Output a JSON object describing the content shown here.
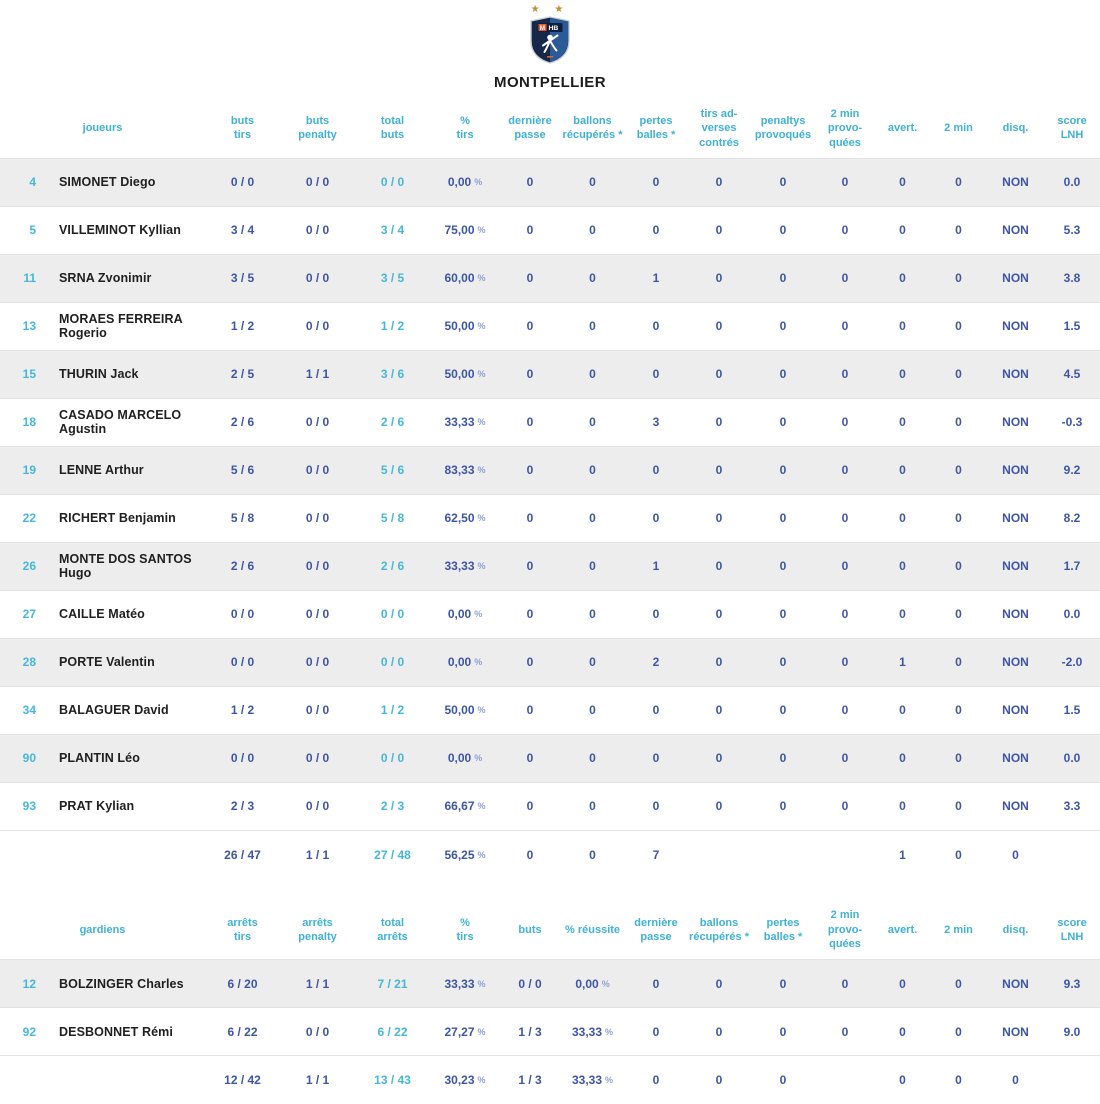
{
  "team": {
    "name": "MONTPELLIER",
    "logo": {
      "stars": "★ ★",
      "text_m": "M",
      "text_hb": "HB"
    }
  },
  "colors": {
    "header_cyan": "#3fb1d6",
    "value_blue": "#3d55a8",
    "accent_cyan": "#45b7d8",
    "row_alt_bg": "#ededed",
    "name_text": "#202020",
    "star_gold": "#bf8f30",
    "shield_dark": "#152849",
    "shield_light": "#2a5a97",
    "shield_orange": "#e35b2e"
  },
  "tables": [
    {
      "name": "players",
      "row_name": "player-row",
      "label_header": "joueurs",
      "columns": [
        "buts\ntirs",
        "buts\npenalty",
        "total\nbuts",
        "%\ntirs",
        "dernière\npasse",
        "ballons\nrécupérés *",
        "pertes\nballes *",
        "tirs ad-\nverses\ncontrés",
        "penaltys\nprovoqués",
        "2 min\nprovo-\nquées",
        "avert.",
        "2 min",
        "disq.",
        "score\nLNH"
      ],
      "rows": [
        {
          "num": "4",
          "name": "SIMONET Diego",
          "values": [
            "0 / 0",
            "0 / 0",
            "0 / 0",
            "0,00 %",
            "0",
            "0",
            "0",
            "0",
            "0",
            "0",
            "0",
            "0",
            "NON",
            "0.0"
          ]
        },
        {
          "num": "5",
          "name": "VILLEMINOT Kyllian",
          "values": [
            "3 / 4",
            "0 / 0",
            "3 / 4",
            "75,00 %",
            "0",
            "0",
            "0",
            "0",
            "0",
            "0",
            "0",
            "0",
            "NON",
            "5.3"
          ]
        },
        {
          "num": "11",
          "name": "SRNA Zvonimir",
          "values": [
            "3 / 5",
            "0 / 0",
            "3 / 5",
            "60,00 %",
            "0",
            "0",
            "1",
            "0",
            "0",
            "0",
            "0",
            "0",
            "NON",
            "3.8"
          ]
        },
        {
          "num": "13",
          "name": "MORAES FERREIRA Rogerio",
          "values": [
            "1 / 2",
            "0 / 0",
            "1 / 2",
            "50,00 %",
            "0",
            "0",
            "0",
            "0",
            "0",
            "0",
            "0",
            "0",
            "NON",
            "1.5"
          ]
        },
        {
          "num": "15",
          "name": "THURIN Jack",
          "values": [
            "2 / 5",
            "1 / 1",
            "3 / 6",
            "50,00 %",
            "0",
            "0",
            "0",
            "0",
            "0",
            "0",
            "0",
            "0",
            "NON",
            "4.5"
          ]
        },
        {
          "num": "18",
          "name": "CASADO MARCELO Agustin",
          "values": [
            "2 / 6",
            "0 / 0",
            "2 / 6",
            "33,33 %",
            "0",
            "0",
            "3",
            "0",
            "0",
            "0",
            "0",
            "0",
            "NON",
            "-0.3"
          ]
        },
        {
          "num": "19",
          "name": "LENNE Arthur",
          "values": [
            "5 / 6",
            "0 / 0",
            "5 / 6",
            "83,33 %",
            "0",
            "0",
            "0",
            "0",
            "0",
            "0",
            "0",
            "0",
            "NON",
            "9.2"
          ]
        },
        {
          "num": "22",
          "name": "RICHERT Benjamin",
          "values": [
            "5 / 8",
            "0 / 0",
            "5 / 8",
            "62,50 %",
            "0",
            "0",
            "0",
            "0",
            "0",
            "0",
            "0",
            "0",
            "NON",
            "8.2"
          ]
        },
        {
          "num": "26",
          "name": "MONTE DOS SANTOS Hugo",
          "values": [
            "2 / 6",
            "0 / 0",
            "2 / 6",
            "33,33 %",
            "0",
            "0",
            "1",
            "0",
            "0",
            "0",
            "0",
            "0",
            "NON",
            "1.7"
          ]
        },
        {
          "num": "27",
          "name": "CAILLE Matéo",
          "values": [
            "0 / 0",
            "0 / 0",
            "0 / 0",
            "0,00 %",
            "0",
            "0",
            "0",
            "0",
            "0",
            "0",
            "0",
            "0",
            "NON",
            "0.0"
          ]
        },
        {
          "num": "28",
          "name": "PORTE Valentin",
          "values": [
            "0 / 0",
            "0 / 0",
            "0 / 0",
            "0,00 %",
            "0",
            "0",
            "2",
            "0",
            "0",
            "0",
            "1",
            "0",
            "NON",
            "-2.0"
          ]
        },
        {
          "num": "34",
          "name": "BALAGUER David",
          "values": [
            "1 / 2",
            "0 / 0",
            "1 / 2",
            "50,00 %",
            "0",
            "0",
            "0",
            "0",
            "0",
            "0",
            "0",
            "0",
            "NON",
            "1.5"
          ]
        },
        {
          "num": "90",
          "name": "PLANTIN Léo",
          "values": [
            "0 / 0",
            "0 / 0",
            "0 / 0",
            "0,00 %",
            "0",
            "0",
            "0",
            "0",
            "0",
            "0",
            "0",
            "0",
            "NON",
            "0.0"
          ]
        },
        {
          "num": "93",
          "name": "PRAT Kylian",
          "values": [
            "2 / 3",
            "0 / 0",
            "2 / 3",
            "66,67 %",
            "0",
            "0",
            "0",
            "0",
            "0",
            "0",
            "0",
            "0",
            "NON",
            "3.3"
          ]
        }
      ],
      "totals": [
        "26 / 47",
        "1 / 1",
        "27 / 48",
        "56,25 %",
        "0",
        "0",
        "7",
        "",
        "",
        "",
        "1",
        "0",
        "0",
        ""
      ]
    },
    {
      "name": "goalkeepers",
      "row_name": "goalkeeper-row",
      "label_header": "gardiens",
      "columns": [
        "arrêts\ntirs",
        "arrêts\npenalty",
        "total\narrêts",
        "%\ntirs",
        "buts",
        "% réussite",
        "dernière\npasse",
        "ballons\nrécupérés *",
        "pertes\nballes *",
        "2 min\nprovo-\nquées",
        "avert.",
        "2 min",
        "disq.",
        "score\nLNH"
      ],
      "rows": [
        {
          "num": "12",
          "name": "BOLZINGER Charles",
          "values": [
            "6 / 20",
            "1 / 1",
            "7 / 21",
            "33,33 %",
            "0 / 0",
            "0,00 %",
            "0",
            "0",
            "0",
            "0",
            "0",
            "0",
            "NON",
            "9.3"
          ]
        },
        {
          "num": "92",
          "name": "DESBONNET Rémi",
          "values": [
            "6 / 22",
            "0 / 0",
            "6 / 22",
            "27,27 %",
            "1 / 3",
            "33,33 %",
            "0",
            "0",
            "0",
            "0",
            "0",
            "0",
            "NON",
            "9.0"
          ]
        }
      ],
      "totals": [
        "12 / 42",
        "1 / 1",
        "13 / 43",
        "30,23 %",
        "1 / 3",
        "33,33 %",
        "0",
        "0",
        "0",
        "",
        "0",
        "0",
        "0",
        ""
      ]
    }
  ]
}
